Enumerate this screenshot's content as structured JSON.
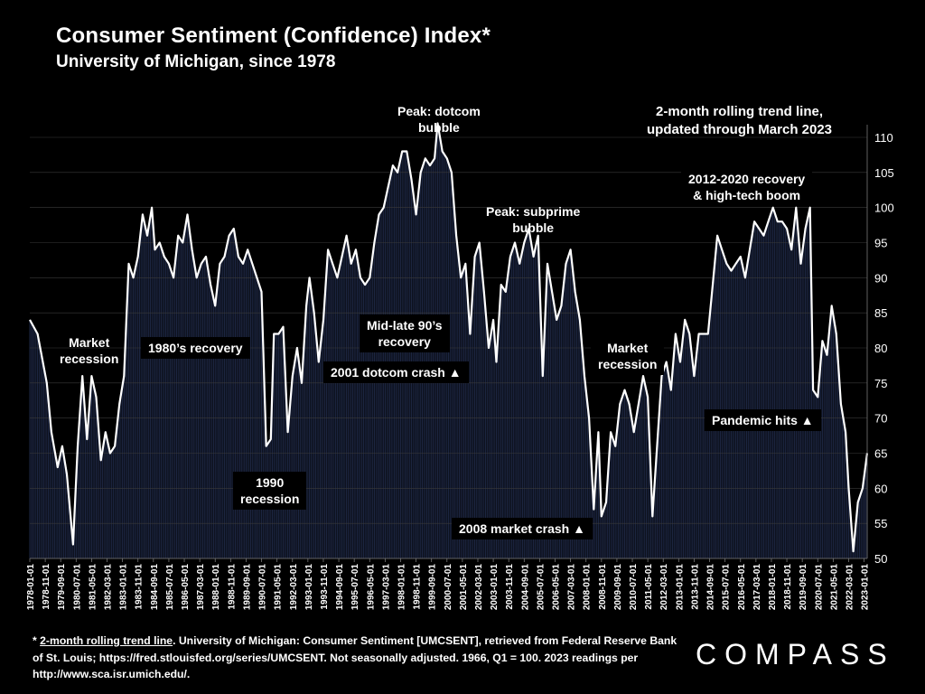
{
  "header": {
    "title": "Consumer Sentiment (Confidence) Index*",
    "subtitle": "University of Michigan, since 1978"
  },
  "annotations": {
    "trend_note": [
      "2-month rolling trend line,",
      "updated through March 2023"
    ],
    "peak_dotcom": [
      "Peak: dotcom",
      "bubble"
    ],
    "peak_subprime": [
      "Peak: subprime",
      "bubble"
    ],
    "recovery_2012": [
      "2012-2020 recovery",
      "& high-tech boom"
    ],
    "market_recession_1": [
      "Market",
      "recession"
    ],
    "recovery_1980s": "1980’s recovery",
    "recovery_90s": [
      "Mid-late 90’s",
      "recovery"
    ],
    "dotcom_crash": "2001 dotcom crash ▲",
    "recession_1990": [
      "1990",
      "recession"
    ],
    "market_recession_2": [
      "Market",
      "recession"
    ],
    "pandemic": "Pandemic hits ▲",
    "crash_2008": "2008 market crash ▲"
  },
  "footnote": {
    "marker": "* ",
    "link_text": "2-month rolling trend line",
    "text": ". University of Michigan: Consumer Sentiment [UMCSENT], retrieved from Federal Reserve Bank of St. Louis; https://fred.stlouisfed.org/series/UMCSENT. Not seasonally adjusted. 1966, Q1 = 100. 2023 readings per http://www.sca.isr.umich.edu/."
  },
  "logo": "COMPASS",
  "colors": {
    "background": "#000000",
    "line": "#ffffff",
    "bars": "#1c2540",
    "grid": "#3a3a3a"
  },
  "chart_data": {
    "type": "line",
    "ylim": [
      50,
      110
    ],
    "yticks": [
      50,
      55,
      60,
      65,
      70,
      75,
      80,
      85,
      90,
      95,
      100,
      105,
      110
    ],
    "y_axis_side": "right",
    "grid": true,
    "x_tick_labels": [
      "1978-01-01",
      "1978-11-01",
      "1979-09-01",
      "1980-07-01",
      "1981-05-01",
      "1982-03-01",
      "1983-01-01",
      "1983-11-01",
      "1984-09-01",
      "1985-07-01",
      "1986-05-01",
      "1987-03-01",
      "1988-01-01",
      "1988-11-01",
      "1989-09-01",
      "1990-07-01",
      "1991-05-01",
      "1992-03-01",
      "1993-01-01",
      "1993-11-01",
      "1994-09-01",
      "1995-07-01",
      "1996-05-01",
      "1997-03-01",
      "1998-01-01",
      "1998-11-01",
      "1999-09-01",
      "2000-07-01",
      "2001-05-01",
      "2002-03-01",
      "2003-01-01",
      "2003-11-01",
      "2004-09-01",
      "2005-07-01",
      "2006-05-01",
      "2007-03-01",
      "2008-01-01",
      "2008-11-01",
      "2009-09-01",
      "2010-07-01",
      "2011-05-01",
      "2012-03-01",
      "2013-01-01",
      "2013-11-01",
      "2014-09-01",
      "2015-07-01",
      "2016-05-01",
      "2017-03-01",
      "2018-01-01",
      "2018-11-01",
      "2019-09-01",
      "2020-07-01",
      "2021-05-01",
      "2022-03-01",
      "2023-01-01"
    ],
    "series": [
      {
        "name": "",
        "points": [
          [
            "1978-01",
            84
          ],
          [
            "1978-06",
            82
          ],
          [
            "1978-12",
            75
          ],
          [
            "1979-03",
            68
          ],
          [
            "1979-07",
            63
          ],
          [
            "1979-10",
            66
          ],
          [
            "1980-01",
            62
          ],
          [
            "1980-05",
            52
          ],
          [
            "1980-08",
            66
          ],
          [
            "1980-11",
            76
          ],
          [
            "1981-02",
            67
          ],
          [
            "1981-05",
            76
          ],
          [
            "1981-08",
            73
          ],
          [
            "1981-11",
            64
          ],
          [
            "1982-02",
            68
          ],
          [
            "1982-05",
            65
          ],
          [
            "1982-08",
            66
          ],
          [
            "1982-11",
            72
          ],
          [
            "1983-02",
            76
          ],
          [
            "1983-05",
            92
          ],
          [
            "1983-08",
            90
          ],
          [
            "1983-11",
            93
          ],
          [
            "1984-02",
            99
          ],
          [
            "1984-05",
            96
          ],
          [
            "1984-08",
            100
          ],
          [
            "1984-10",
            94
          ],
          [
            "1985-01",
            95
          ],
          [
            "1985-04",
            93
          ],
          [
            "1985-07",
            92
          ],
          [
            "1985-10",
            90
          ],
          [
            "1986-01",
            96
          ],
          [
            "1986-04",
            95
          ],
          [
            "1986-07",
            99
          ],
          [
            "1986-10",
            94
          ],
          [
            "1987-01",
            90
          ],
          [
            "1987-04",
            92
          ],
          [
            "1987-07",
            93
          ],
          [
            "1987-10",
            89
          ],
          [
            "1988-01",
            86
          ],
          [
            "1988-04",
            92
          ],
          [
            "1988-07",
            93
          ],
          [
            "1988-10",
            96
          ],
          [
            "1989-01",
            97
          ],
          [
            "1989-04",
            93
          ],
          [
            "1989-07",
            92
          ],
          [
            "1989-10",
            94
          ],
          [
            "1990-01",
            92
          ],
          [
            "1990-04",
            90
          ],
          [
            "1990-07",
            88
          ],
          [
            "1990-10",
            66
          ],
          [
            "1991-01",
            67
          ],
          [
            "1991-03",
            82
          ],
          [
            "1991-06",
            82
          ],
          [
            "1991-09",
            83
          ],
          [
            "1991-12",
            68
          ],
          [
            "1992-03",
            76
          ],
          [
            "1992-06",
            80
          ],
          [
            "1992-09",
            75
          ],
          [
            "1992-12",
            86
          ],
          [
            "1993-02",
            90
          ],
          [
            "1993-05",
            85
          ],
          [
            "1993-08",
            78
          ],
          [
            "1993-11",
            84
          ],
          [
            "1994-02",
            94
          ],
          [
            "1994-05",
            92
          ],
          [
            "1994-08",
            90
          ],
          [
            "1994-11",
            93
          ],
          [
            "1995-02",
            96
          ],
          [
            "1995-05",
            92
          ],
          [
            "1995-08",
            94
          ],
          [
            "1995-11",
            90
          ],
          [
            "1996-02",
            89
          ],
          [
            "1996-05",
            90
          ],
          [
            "1996-08",
            95
          ],
          [
            "1996-11",
            99
          ],
          [
            "1997-02",
            100
          ],
          [
            "1997-05",
            103
          ],
          [
            "1997-08",
            106
          ],
          [
            "1997-11",
            105
          ],
          [
            "1998-02",
            108
          ],
          [
            "1998-05",
            108
          ],
          [
            "1998-08",
            104
          ],
          [
            "1998-11",
            99
          ],
          [
            "1999-02",
            105
          ],
          [
            "1999-05",
            107
          ],
          [
            "1999-08",
            106
          ],
          [
            "1999-11",
            107
          ],
          [
            "2000-01",
            112
          ],
          [
            "2000-04",
            108
          ],
          [
            "2000-07",
            107
          ],
          [
            "2000-10",
            105
          ],
          [
            "2001-01",
            96
          ],
          [
            "2001-04",
            90
          ],
          [
            "2001-07",
            92
          ],
          [
            "2001-10",
            82
          ],
          [
            "2002-01",
            93
          ],
          [
            "2002-04",
            95
          ],
          [
            "2002-07",
            88
          ],
          [
            "2002-10",
            80
          ],
          [
            "2003-01",
            84
          ],
          [
            "2003-03",
            78
          ],
          [
            "2003-06",
            89
          ],
          [
            "2003-09",
            88
          ],
          [
            "2003-12",
            93
          ],
          [
            "2004-03",
            95
          ],
          [
            "2004-06",
            92
          ],
          [
            "2004-09",
            95
          ],
          [
            "2004-12",
            97
          ],
          [
            "2005-03",
            93
          ],
          [
            "2005-06",
            96
          ],
          [
            "2005-09",
            76
          ],
          [
            "2005-12",
            92
          ],
          [
            "2006-03",
            88
          ],
          [
            "2006-06",
            84
          ],
          [
            "2006-09",
            86
          ],
          [
            "2006-12",
            92
          ],
          [
            "2007-03",
            94
          ],
          [
            "2007-06",
            88
          ],
          [
            "2007-09",
            84
          ],
          [
            "2007-12",
            76
          ],
          [
            "2008-03",
            70
          ],
          [
            "2008-06",
            57
          ],
          [
            "2008-09",
            68
          ],
          [
            "2008-11",
            56
          ],
          [
            "2009-02",
            58
          ],
          [
            "2009-05",
            68
          ],
          [
            "2009-08",
            66
          ],
          [
            "2009-11",
            72
          ],
          [
            "2010-02",
            74
          ],
          [
            "2010-05",
            72
          ],
          [
            "2010-08",
            68
          ],
          [
            "2010-11",
            72
          ],
          [
            "2011-02",
            76
          ],
          [
            "2011-05",
            73
          ],
          [
            "2011-08",
            56
          ],
          [
            "2011-11",
            66
          ],
          [
            "2012-02",
            76
          ],
          [
            "2012-05",
            78
          ],
          [
            "2012-08",
            74
          ],
          [
            "2012-11",
            82
          ],
          [
            "2013-02",
            78
          ],
          [
            "2013-05",
            84
          ],
          [
            "2013-08",
            82
          ],
          [
            "2013-11",
            76
          ],
          [
            "2014-02",
            82
          ],
          [
            "2014-05",
            82
          ],
          [
            "2014-08",
            82
          ],
          [
            "2014-11",
            89
          ],
          [
            "2015-02",
            96
          ],
          [
            "2015-05",
            94
          ],
          [
            "2015-08",
            92
          ],
          [
            "2015-11",
            91
          ],
          [
            "2016-02",
            92
          ],
          [
            "2016-05",
            93
          ],
          [
            "2016-08",
            90
          ],
          [
            "2016-11",
            94
          ],
          [
            "2017-02",
            98
          ],
          [
            "2017-05",
            97
          ],
          [
            "2017-08",
            96
          ],
          [
            "2017-11",
            98
          ],
          [
            "2018-02",
            100
          ],
          [
            "2018-05",
            98
          ],
          [
            "2018-08",
            98
          ],
          [
            "2018-11",
            97
          ],
          [
            "2019-02",
            94
          ],
          [
            "2019-05",
            100
          ],
          [
            "2019-08",
            92
          ],
          [
            "2019-11",
            97
          ],
          [
            "2020-02",
            100
          ],
          [
            "2020-04",
            74
          ],
          [
            "2020-07",
            73
          ],
          [
            "2020-10",
            81
          ],
          [
            "2021-01",
            79
          ],
          [
            "2021-04",
            86
          ],
          [
            "2021-07",
            82
          ],
          [
            "2021-10",
            72
          ],
          [
            "2022-01",
            68
          ],
          [
            "2022-03",
            60
          ],
          [
            "2022-06",
            51
          ],
          [
            "2022-09",
            58
          ],
          [
            "2022-12",
            60
          ],
          [
            "2023-03",
            65
          ]
        ]
      }
    ]
  }
}
